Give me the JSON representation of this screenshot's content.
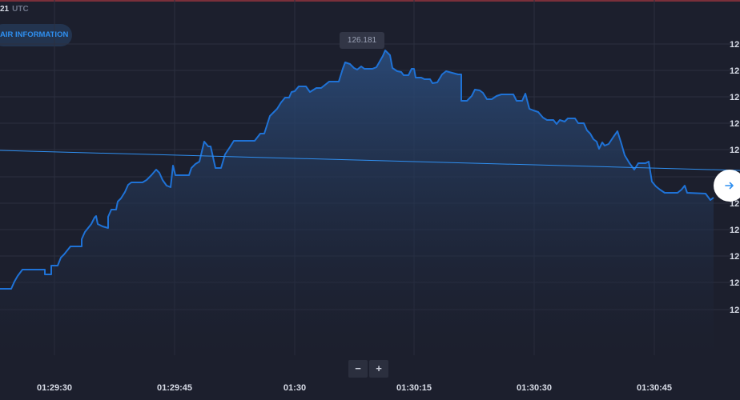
{
  "header": {
    "time_fragment": "21",
    "timezone": "UTC",
    "pair_info_label": "AIR INFORMATION"
  },
  "controls": {
    "zoom_out_label": "−",
    "zoom_in_label": "+",
    "goto_icon": "arrow-right-icon"
  },
  "colors": {
    "background": "#1c1f2d",
    "line": "#1f72d6",
    "accent": "#2f8ff0",
    "grid": "#2b2f3f"
  },
  "chart_data": {
    "type": "area",
    "current_price_label": "126.181",
    "y_tick_labels": [
      "12",
      "12",
      "12",
      "12",
      "12",
      "12",
      "12",
      "12",
      "12",
      "12",
      "12"
    ],
    "x_tick_labels": [
      "01:29:30",
      "01:29:45",
      "01:30",
      "01:30:15",
      "01:30:30",
      "01:30:45"
    ],
    "x_range": [
      "01:29:24",
      "01:30:50"
    ],
    "grid": true,
    "series": [
      {
        "values": [
          [
            0,
            361
          ],
          [
            14,
            361
          ],
          [
            18,
            352
          ],
          [
            22,
            345
          ],
          [
            28,
            337
          ],
          [
            56,
            337
          ],
          [
            56,
            343
          ],
          [
            64,
            343
          ],
          [
            64,
            332
          ],
          [
            72,
            332
          ],
          [
            76,
            322
          ],
          [
            80,
            318
          ],
          [
            84,
            313
          ],
          [
            88,
            308
          ],
          [
            102,
            308
          ],
          [
            102,
            299
          ],
          [
            106,
            290
          ],
          [
            110,
            285
          ],
          [
            114,
            280
          ],
          [
            118,
            272
          ],
          [
            120,
            270
          ],
          [
            122,
            280
          ],
          [
            128,
            283
          ],
          [
            135,
            285
          ],
          [
            135,
            271
          ],
          [
            139,
            262
          ],
          [
            145,
            262
          ],
          [
            147,
            252
          ],
          [
            151,
            248
          ],
          [
            156,
            240
          ],
          [
            160,
            231
          ],
          [
            164,
            228
          ],
          [
            178,
            228
          ],
          [
            183,
            225
          ],
          [
            189,
            219
          ],
          [
            195,
            212
          ],
          [
            199,
            216
          ],
          [
            203,
            225
          ],
          [
            208,
            232
          ],
          [
            213,
            234
          ],
          [
            216,
            207
          ],
          [
            219,
            219
          ],
          [
            236,
            219
          ],
          [
            239,
            210
          ],
          [
            244,
            205
          ],
          [
            249,
            202
          ],
          [
            255,
            177
          ],
          [
            260,
            183
          ],
          [
            263,
            183
          ],
          [
            269,
            210
          ],
          [
            276,
            210
          ],
          [
            281,
            193
          ],
          [
            287,
            184
          ],
          [
            292,
            176
          ],
          [
            300,
            176
          ],
          [
            310,
            176
          ],
          [
            318,
            176
          ],
          [
            325,
            167
          ],
          [
            330,
            167
          ],
          [
            337,
            145
          ],
          [
            342,
            140
          ],
          [
            346,
            136
          ],
          [
            351,
            128
          ],
          [
            356,
            122
          ],
          [
            361,
            122
          ],
          [
            364,
            115
          ],
          [
            368,
            114
          ],
          [
            373,
            108
          ],
          [
            382,
            108
          ],
          [
            387,
            115
          ],
          [
            395,
            110
          ],
          [
            401,
            110
          ],
          [
            411,
            102
          ],
          [
            423,
            102
          ],
          [
            428,
            86
          ],
          [
            431,
            78
          ],
          [
            437,
            80
          ],
          [
            442,
            85
          ],
          [
            446,
            87
          ],
          [
            451,
            83
          ],
          [
            455,
            86
          ],
          [
            465,
            86
          ],
          [
            470,
            84
          ],
          [
            474,
            77
          ],
          [
            478,
            70
          ],
          [
            481,
            63
          ],
          [
            487,
            69
          ],
          [
            490,
            85
          ],
          [
            496,
            89
          ],
          [
            501,
            90
          ],
          [
            504,
            94
          ],
          [
            510,
            94
          ],
          [
            514,
            86
          ],
          [
            517,
            86
          ],
          [
            519,
            97
          ],
          [
            526,
            97
          ],
          [
            530,
            99
          ],
          [
            537,
            99
          ],
          [
            540,
            104
          ],
          [
            546,
            103
          ],
          [
            552,
            93
          ],
          [
            557,
            89
          ],
          [
            572,
            93
          ],
          [
            576,
            93
          ],
          [
            576,
            126
          ],
          [
            583,
            126
          ],
          [
            589,
            120
          ],
          [
            593,
            112
          ],
          [
            599,
            113
          ],
          [
            603,
            116
          ],
          [
            608,
            124
          ],
          [
            614,
            124
          ],
          [
            620,
            120
          ],
          [
            626,
            118
          ],
          [
            641,
            118
          ],
          [
            645,
            126
          ],
          [
            652,
            126
          ],
          [
            656,
            117
          ],
          [
            661,
            136
          ],
          [
            666,
            138
          ],
          [
            672,
            140
          ],
          [
            678,
            147
          ],
          [
            683,
            150
          ],
          [
            691,
            150
          ],
          [
            695,
            155
          ],
          [
            699,
            150
          ],
          [
            705,
            152
          ],
          [
            709,
            148
          ],
          [
            718,
            148
          ],
          [
            722,
            154
          ],
          [
            729,
            154
          ],
          [
            733,
            163
          ],
          [
            737,
            167
          ],
          [
            741,
            174
          ],
          [
            745,
            177
          ],
          [
            748,
            186
          ],
          [
            752,
            178
          ],
          [
            755,
            182
          ],
          [
            760,
            180
          ],
          [
            766,
            171
          ],
          [
            771,
            164
          ],
          [
            776,
            180
          ],
          [
            780,
            194
          ],
          [
            786,
            204
          ],
          [
            792,
            212
          ],
          [
            797,
            204
          ],
          [
            806,
            204
          ],
          [
            810,
            202
          ],
          [
            814,
            227
          ],
          [
            819,
            233
          ],
          [
            824,
            237
          ],
          [
            830,
            241
          ],
          [
            846,
            241
          ],
          [
            851,
            237
          ],
          [
            855,
            232
          ],
          [
            858,
            241
          ],
          [
            881,
            242
          ],
          [
            887,
            250
          ],
          [
            891,
            247
          ]
        ]
      }
    ],
    "trend_line": [
      [
        0,
        188
      ],
      [
        924,
        213
      ]
    ]
  }
}
